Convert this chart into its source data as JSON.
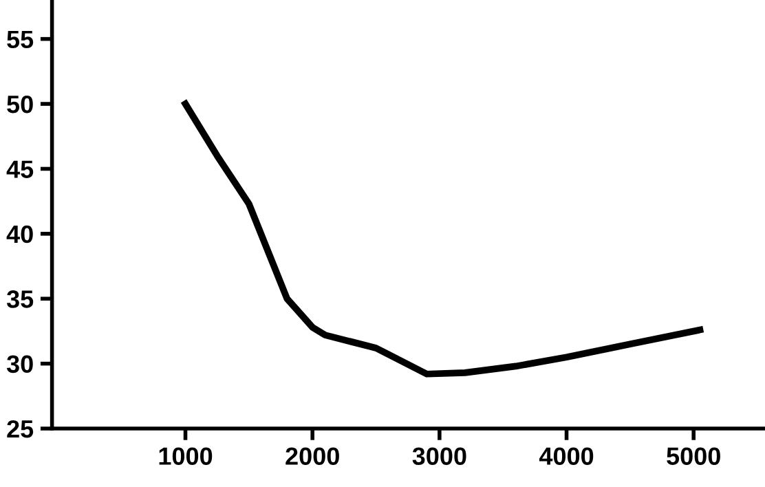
{
  "chart_data": {
    "type": "line",
    "x": [
      1000,
      1250,
      1500,
      1800,
      2000,
      2100,
      2500,
      2900,
      3200,
      3600,
      4000,
      4500,
      5050
    ],
    "series": [
      {
        "color": "#000000",
        "values": [
          50,
          46,
          42.3,
          35,
          32.8,
          32.2,
          31.2,
          29.2,
          29.3,
          29.8,
          30.5,
          31.5,
          32.6
        ]
      }
    ],
    "xlim": [
      -50,
      5550
    ],
    "ylim": [
      25,
      58
    ],
    "xticks": [
      1000,
      2000,
      3000,
      4000,
      5000
    ],
    "yticks": [
      25,
      30,
      35,
      40,
      45,
      50,
      55
    ],
    "grid": false,
    "legend": false,
    "marker": "none",
    "line_style": "solid"
  }
}
